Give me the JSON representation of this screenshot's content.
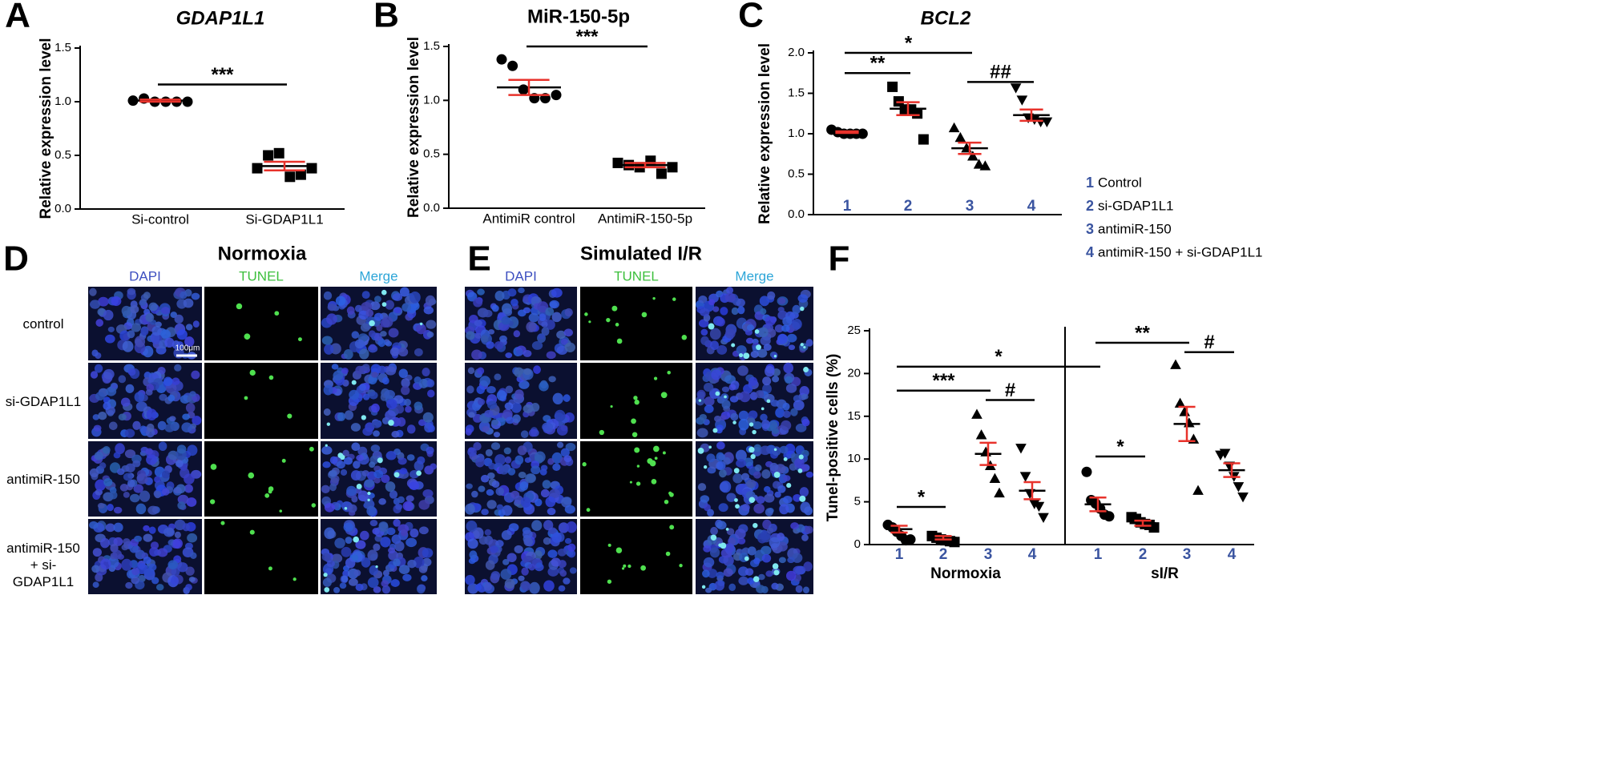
{
  "chart_data": [
    {
      "type": "dot",
      "panel": "A",
      "title": "GDAP1L1",
      "title_style": "italic",
      "y_label": "Relative expression level",
      "categories": [
        "Si-control",
        "Si-GDAP1L1"
      ],
      "markers": [
        "circle",
        "square"
      ],
      "points": [
        [
          1.01,
          1.03,
          1.0,
          1.0,
          1.0,
          1.0
        ],
        [
          0.38,
          0.5,
          0.52,
          0.3,
          0.32,
          0.38
        ]
      ],
      "mean": [
        1.01,
        0.4
      ],
      "sem": [
        0.01,
        0.04
      ],
      "ylim": [
        0,
        1.5
      ],
      "yticks": [
        {
          "value": 0,
          "label": "0.0"
        },
        {
          "value": 0.5,
          "label": "0.5"
        },
        {
          "value": 1,
          "label": "1.0"
        },
        {
          "value": 1.5,
          "label": "1.5"
        }
      ],
      "annotations": [
        {
          "text": "***",
          "from": 0,
          "to": 1,
          "y": 1.16
        }
      ],
      "mean_color": "#000000",
      "error_color": "#e8322b",
      "category_color": "#000000"
    },
    {
      "type": "dot",
      "panel": "B",
      "title": "MiR-150-5p",
      "title_style": "normal",
      "y_label": "Relative expression level",
      "categories": [
        "AntimiR control",
        "AntimiR-150-5p"
      ],
      "markers": [
        "circle",
        "square"
      ],
      "points": [
        [
          1.38,
          1.32,
          1.1,
          1.02,
          1.02,
          1.05
        ],
        [
          0.42,
          0.4,
          0.38,
          0.44,
          0.32,
          0.38
        ]
      ],
      "mean": [
        1.12,
        0.4
      ],
      "sem": [
        0.07,
        0.02
      ],
      "ylim": [
        0,
        1.5
      ],
      "yticks": [
        {
          "value": 0,
          "label": "0.0"
        },
        {
          "value": 0.5,
          "label": "0.5"
        },
        {
          "value": 1,
          "label": "1.0"
        },
        {
          "value": 1.5,
          "label": "1.5"
        }
      ],
      "annotations": [
        {
          "text": "***",
          "from": 0,
          "to": 1,
          "y": 1.5
        }
      ],
      "mean_color": "#000000",
      "error_color": "#e8322b",
      "category_color": "#000000"
    },
    {
      "type": "dot",
      "panel": "C",
      "title": "BCL2",
      "title_style": "italic",
      "y_label": "Relative expression level",
      "categories": [
        "1",
        "2",
        "3",
        "4"
      ],
      "markers": [
        "circle",
        "square",
        "triangle",
        "triangle-down"
      ],
      "points": [
        [
          1.05,
          1.02,
          1.0,
          1.0,
          1.0,
          1.0
        ],
        [
          1.58,
          1.4,
          1.3,
          1.3,
          1.25,
          0.93
        ],
        [
          1.07,
          0.95,
          0.82,
          0.72,
          0.62,
          0.6
        ],
        [
          1.57,
          1.42,
          1.2,
          1.18,
          1.15,
          1.15
        ]
      ],
      "mean": [
        1.02,
        1.31,
        0.82,
        1.23
      ],
      "sem": [
        0.01,
        0.08,
        0.07,
        0.07
      ],
      "ylim": [
        0,
        2
      ],
      "yticks": [
        {
          "value": 0,
          "label": "0.0"
        },
        {
          "value": 0.5,
          "label": "0.5"
        },
        {
          "value": 1,
          "label": "1.0"
        },
        {
          "value": 1.5,
          "label": "1.5"
        },
        {
          "value": 2,
          "label": "2.0"
        }
      ],
      "annotations": [
        {
          "text": "**",
          "from": 0,
          "to": 1,
          "y": 1.75
        },
        {
          "text": "*",
          "from": 0,
          "to": 2,
          "y": 2.0
        },
        {
          "text": "##",
          "from": 2,
          "to": 3,
          "y": 1.64
        }
      ],
      "mean_color": "#000000",
      "error_color": "#e8322b",
      "category_color": "#3a54a0"
    },
    {
      "type": "dot",
      "panel": "F",
      "y_label": "Tunel-positive cells (%)",
      "categories": [
        "1",
        "2",
        "3",
        "4",
        "1",
        "2",
        "3",
        "4"
      ],
      "group_labels": [
        "Normoxia",
        "sI/R"
      ],
      "markers": [
        "circle",
        "square",
        "triangle",
        "triangle-down",
        "circle",
        "square",
        "triangle",
        "triangle-down"
      ],
      "points": [
        [
          2.3,
          2.0,
          1.5,
          1.0,
          0.5,
          0.6
        ],
        [
          1.0,
          0.8,
          0.6,
          0.5,
          0.4,
          0.3
        ],
        [
          15.2,
          12.8,
          10.8,
          9.2,
          7.7,
          6.0
        ],
        [
          11.3,
          8.0,
          6.0,
          4.8,
          4.5,
          3.2
        ],
        [
          8.5,
          5.2,
          4.8,
          4.2,
          3.5,
          3.3
        ],
        [
          3.2,
          3.0,
          2.6,
          2.4,
          2.3,
          2.0
        ],
        [
          21.0,
          16.5,
          15.5,
          14.2,
          12.3,
          6.3
        ],
        [
          10.5,
          10.7,
          9.2,
          8.0,
          6.8,
          5.6
        ]
      ],
      "mean": [
        1.8,
        0.8,
        10.6,
        6.3,
        4.7,
        2.5,
        14.1,
        8.7
      ],
      "sem": [
        0.4,
        0.2,
        1.3,
        1.0,
        0.8,
        0.3,
        2.0,
        0.8
      ],
      "ylim": [
        0,
        25
      ],
      "yticks": [
        0,
        5,
        10,
        15,
        20,
        25
      ],
      "annotations": [
        {
          "text": "*",
          "from": 0,
          "to": 1,
          "y": 4.4
        },
        {
          "text": "***",
          "from": 0,
          "to": 2,
          "y": 18.0
        },
        {
          "text": "#",
          "from": 2,
          "to": 3,
          "y": 16.9
        },
        {
          "text": "*",
          "from": 0,
          "to": 4,
          "y": 20.8
        },
        {
          "text": "**",
          "from": 4,
          "to": 6,
          "y": 23.6
        },
        {
          "text": "#",
          "from": 6,
          "to": 7,
          "y": 22.5
        },
        {
          "text": "*",
          "from": 4,
          "to": 5,
          "y": 10.3
        }
      ],
      "mean_color": "#000000",
      "error_color": "#e8322b",
      "category_color": "#3a54a0"
    }
  ],
  "figure": {
    "image_panels": [
      {
        "label": "D",
        "title": "Normoxia"
      },
      {
        "label": "E",
        "title": "Simulated I/R"
      }
    ],
    "channels": [
      "DAPI",
      "TUNEL",
      "Merge"
    ],
    "rows": [
      "control",
      "si-GDAP1L1",
      "antimiR-150",
      "antimiR-150 + si-GDAP1L1"
    ],
    "scale_bar": "100μm",
    "legend": [
      {
        "number": "1",
        "text": "Control"
      },
      {
        "number": "2",
        "text": "si-GDAP1L1"
      },
      {
        "number": "3",
        "text": "antimiR-150"
      },
      {
        "number": "4",
        "text": "antimiR-150 + si-GDAP1L1"
      }
    ]
  }
}
